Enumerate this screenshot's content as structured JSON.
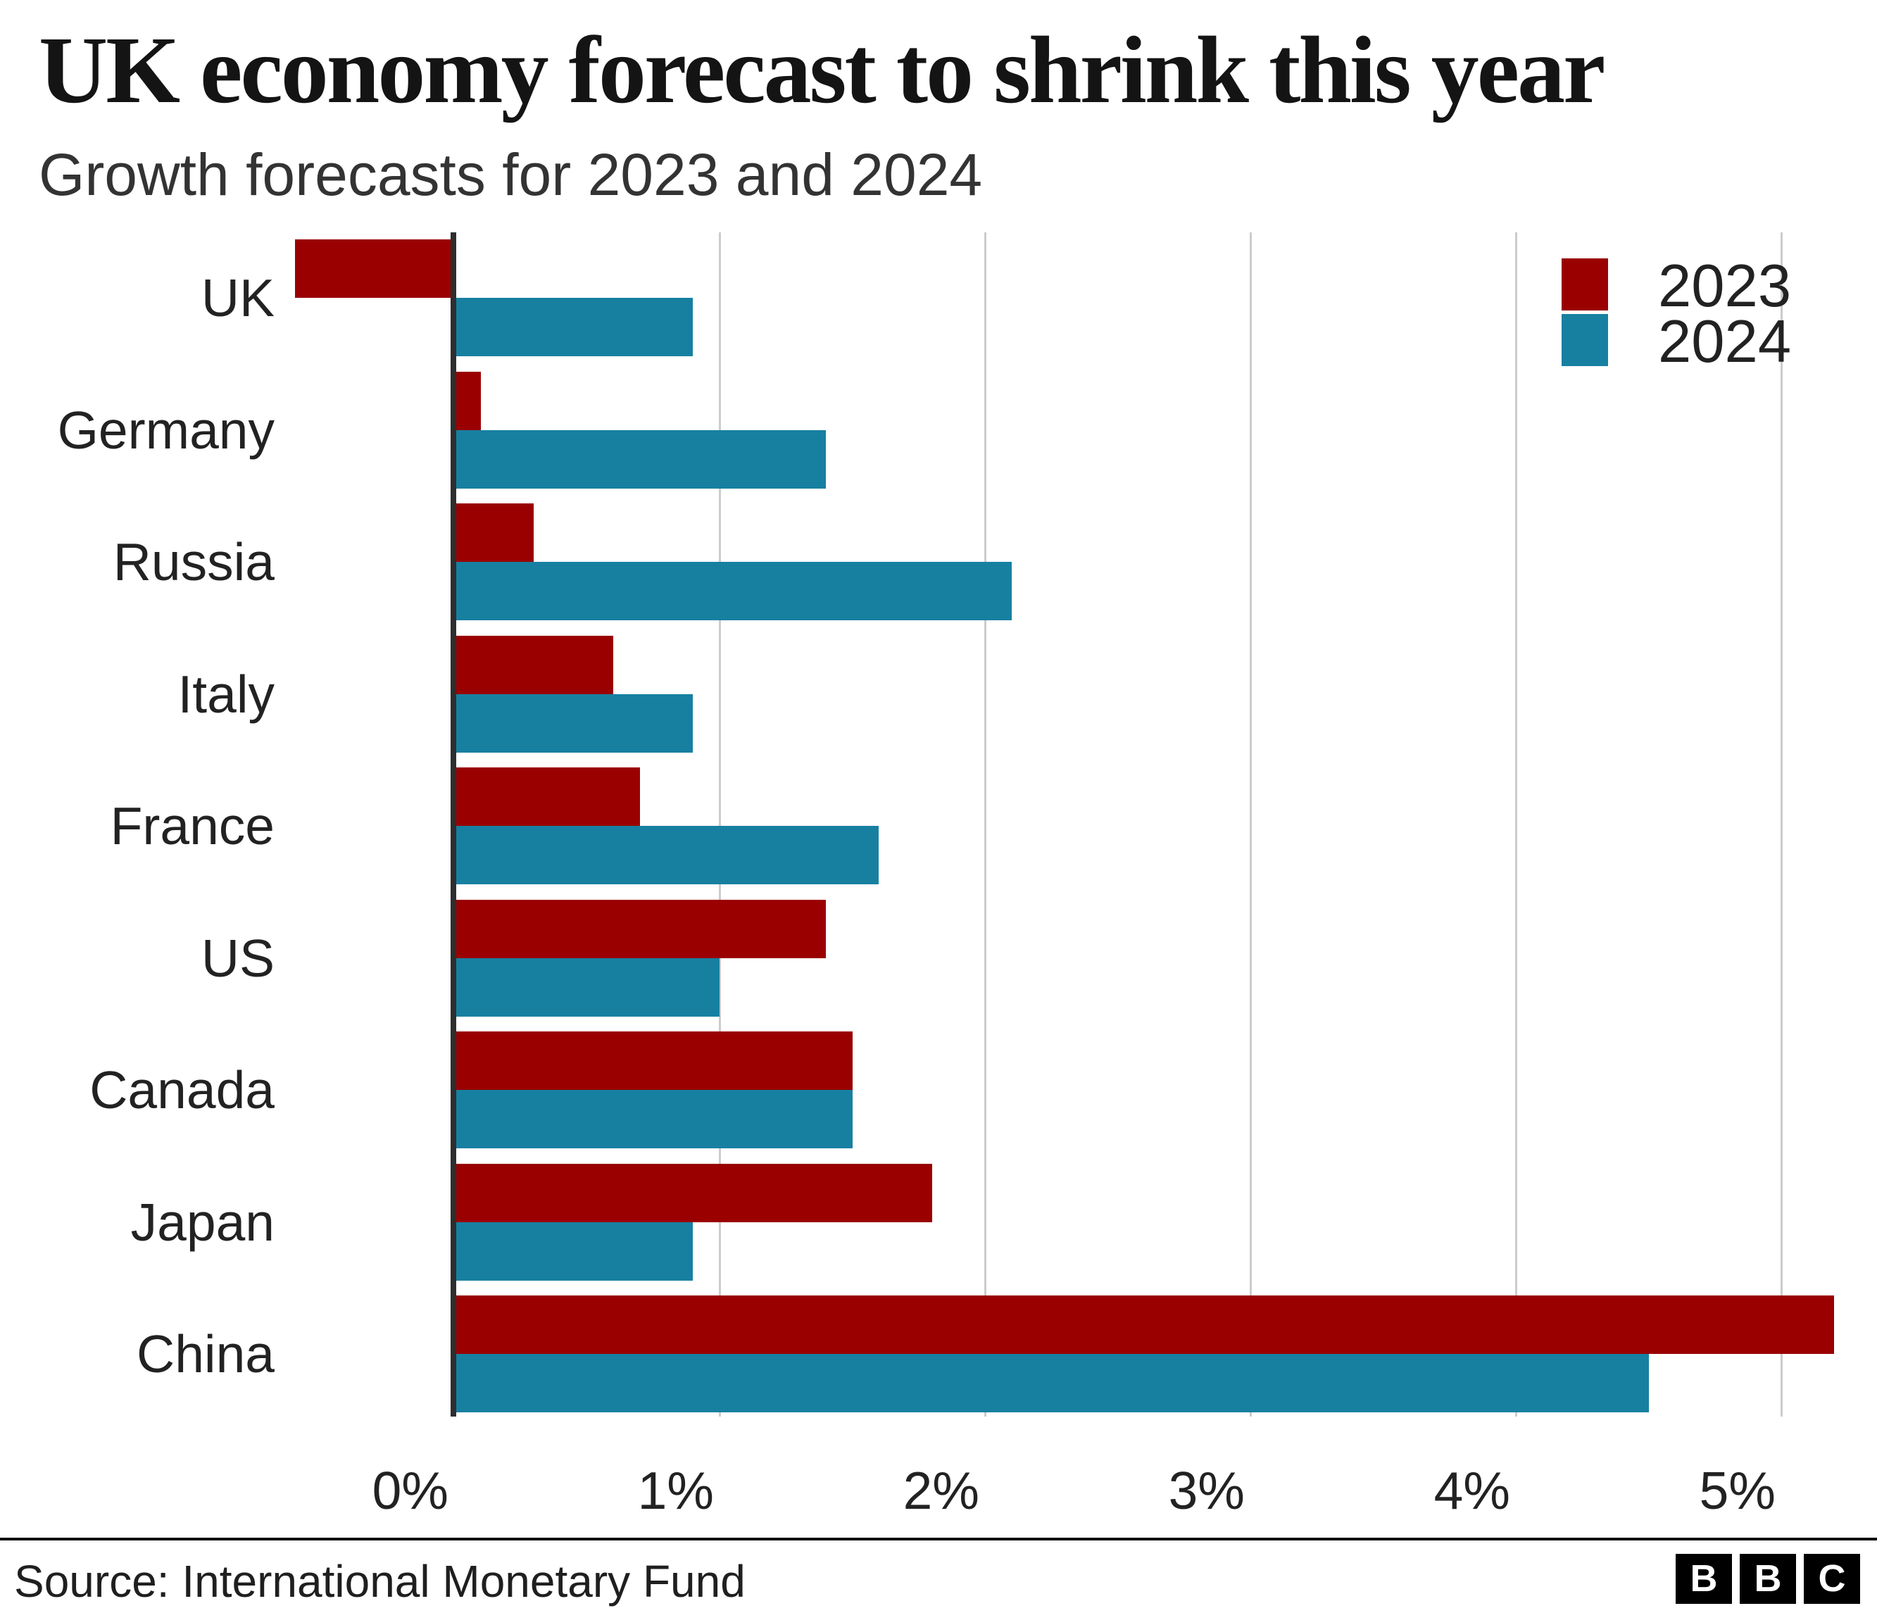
{
  "header": {
    "title": "UK economy forecast to shrink this year",
    "subtitle": "Growth forecasts for 2023 and 2024"
  },
  "legend": [
    {
      "label": "2023",
      "color": "#9a0000"
    },
    {
      "label": "2024",
      "color": "#1780a1"
    }
  ],
  "chart_data": {
    "type": "bar",
    "orientation": "horizontal",
    "title": "UK economy forecast to shrink this year",
    "subtitle": "Growth forecasts for 2023 and 2024",
    "categories": [
      "UK",
      "Germany",
      "Russia",
      "Italy",
      "France",
      "US",
      "Canada",
      "Japan",
      "China"
    ],
    "series": [
      {
        "name": "2023",
        "color": "#9a0000",
        "values": [
          -0.6,
          0.1,
          0.3,
          0.6,
          0.7,
          1.4,
          1.5,
          1.8,
          5.2
        ]
      },
      {
        "name": "2024",
        "color": "#1780a1",
        "values": [
          0.9,
          1.4,
          2.1,
          0.9,
          1.6,
          1.0,
          1.5,
          0.9,
          4.5
        ]
      }
    ],
    "x_ticks": [
      {
        "value": 0,
        "label": "0%"
      },
      {
        "value": 1,
        "label": "1%"
      },
      {
        "value": 2,
        "label": "2%"
      },
      {
        "value": 3,
        "label": "3%"
      },
      {
        "value": 4,
        "label": "4%"
      },
      {
        "value": 5,
        "label": "5%"
      },
      {
        "value": null,
        "label": ""
      }
    ],
    "xlim": [
      -0.7,
      5.35
    ],
    "grid": true,
    "unit": "%",
    "legend_position": "top-right",
    "axis_color": "#2e2e2e",
    "gridline_color": "#cccccc"
  },
  "footer": {
    "source": "Source: International Monetary Fund",
    "logo_letters": [
      "B",
      "B",
      "C"
    ]
  }
}
